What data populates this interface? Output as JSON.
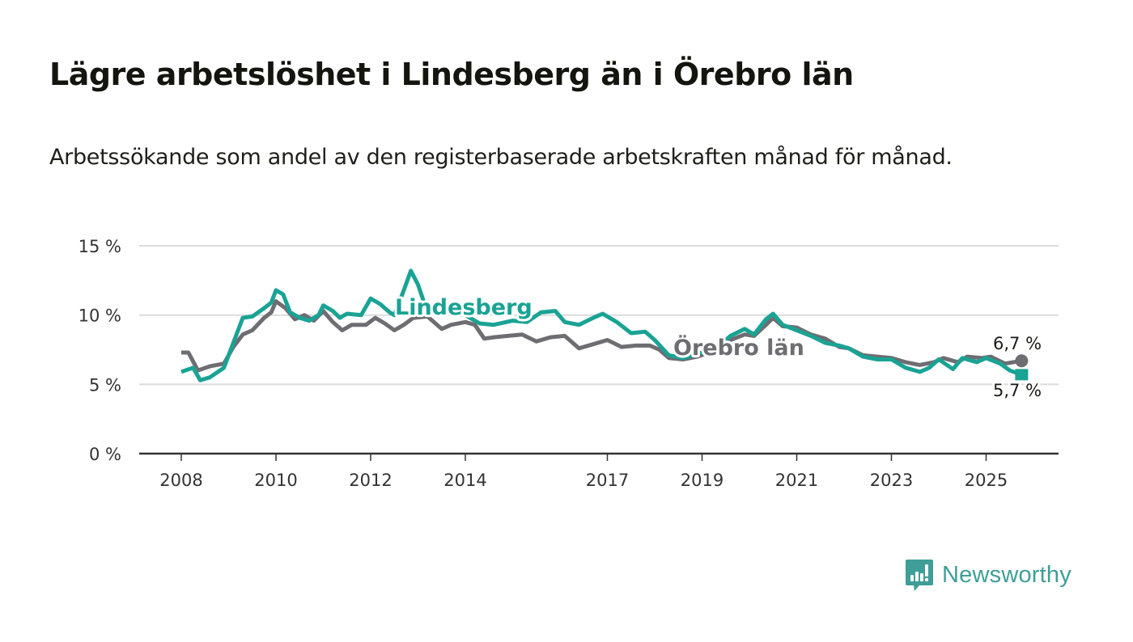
{
  "header": {
    "title": "Lägre arbetslöshet i Lindesberg än i Örebro län",
    "subtitle": "Arbetssökande som andel av den registerbaserade arbetskraften månad för månad."
  },
  "brand": {
    "name": "Newsworthy",
    "icon": "bar-chart-speech-bubble-icon",
    "color": "#3f9e97"
  },
  "chart_data": {
    "type": "line",
    "title": "Lägre arbetslöshet i Lindesberg än i Örebro län",
    "subtitle": "Arbetssökande som andel av den registerbaserade arbetskraften månad för månad.",
    "xlabel": "",
    "ylabel": "",
    "xlim": [
      2007.5,
      2026.5
    ],
    "ylim": [
      0,
      15
    ],
    "yticks": [
      0,
      5,
      10,
      15
    ],
    "ytick_labels": [
      "0 %",
      "5 %",
      "10 %",
      "15 %"
    ],
    "xticks": [
      2008,
      2010,
      2012,
      2014,
      2017,
      2019,
      2021,
      2023,
      2025
    ],
    "xtick_labels": [
      "2008",
      "2010",
      "2012",
      "2014",
      "2017",
      "2019",
      "2021",
      "2023",
      "2025"
    ],
    "grid": true,
    "legend": "inline labels",
    "series": [
      {
        "name": "Örebro län",
        "color": "#6e6d72",
        "label": "Örebro län",
        "end_label": "6,7 %",
        "x": [
          2008.0,
          2008.15,
          2008.35,
          2008.6,
          2008.9,
          2009.1,
          2009.3,
          2009.5,
          2009.75,
          2009.9,
          2010.0,
          2010.2,
          2010.4,
          2010.6,
          2010.8,
          2011.0,
          2011.2,
          2011.4,
          2011.6,
          2011.9,
          2012.1,
          2012.3,
          2012.5,
          2012.7,
          2012.9,
          2013.2,
          2013.5,
          2013.7,
          2014.0,
          2014.2,
          2014.4,
          2014.6,
          2014.9,
          2015.2,
          2015.5,
          2015.8,
          2016.1,
          2016.4,
          2016.7,
          2017.0,
          2017.3,
          2017.6,
          2017.9,
          2018.1,
          2018.3,
          2018.6,
          2018.9,
          2019.3,
          2019.6,
          2019.9,
          2020.1,
          2020.35,
          2020.5,
          2020.7,
          2021.0,
          2021.3,
          2021.6,
          2021.9,
          2022.1,
          2022.4,
          2022.7,
          2023.0,
          2023.3,
          2023.6,
          2023.9,
          2024.1,
          2024.4,
          2024.6,
          2024.9,
          2025.1,
          2025.4,
          2025.75
        ],
        "values": [
          7.3,
          7.3,
          6.0,
          6.3,
          6.5,
          7.7,
          8.6,
          8.9,
          9.8,
          10.2,
          11.0,
          10.5,
          9.7,
          10.0,
          9.6,
          10.3,
          9.5,
          8.9,
          9.3,
          9.3,
          9.8,
          9.4,
          8.9,
          9.3,
          9.8,
          9.9,
          9.0,
          9.3,
          9.5,
          9.3,
          8.3,
          8.4,
          8.5,
          8.6,
          8.1,
          8.4,
          8.5,
          7.6,
          7.9,
          8.2,
          7.7,
          7.8,
          7.8,
          7.5,
          6.9,
          6.8,
          7.0,
          7.5,
          8.2,
          8.6,
          8.5,
          9.3,
          9.8,
          9.2,
          9.1,
          8.6,
          8.3,
          7.7,
          7.6,
          7.1,
          7.0,
          6.9,
          6.6,
          6.4,
          6.6,
          6.9,
          6.6,
          7.0,
          6.9,
          7.0,
          6.5,
          6.7
        ]
      },
      {
        "name": "Lindesberg",
        "color": "#1aa394",
        "label": "Lindesberg",
        "end_label": "5,7 %",
        "x": [
          2008.0,
          2008.25,
          2008.4,
          2008.6,
          2008.9,
          2009.1,
          2009.3,
          2009.5,
          2009.75,
          2009.9,
          2010.0,
          2010.15,
          2010.3,
          2010.5,
          2010.7,
          2010.9,
          2011.0,
          2011.2,
          2011.35,
          2011.5,
          2011.8,
          2012.0,
          2012.2,
          2012.4,
          2012.5,
          2012.7,
          2012.85,
          2013.0,
          2013.2,
          2013.4,
          2013.7,
          2014.0,
          2014.3,
          2014.6,
          2015.0,
          2015.3,
          2015.6,
          2015.9,
          2016.1,
          2016.4,
          2016.7,
          2016.9,
          2017.2,
          2017.5,
          2017.8,
          2018.0,
          2018.3,
          2018.6,
          2018.9,
          2019.3,
          2019.6,
          2019.9,
          2020.1,
          2020.35,
          2020.5,
          2020.7,
          2021.0,
          2021.3,
          2021.6,
          2021.9,
          2022.1,
          2022.4,
          2022.7,
          2023.0,
          2023.3,
          2023.6,
          2023.8,
          2024.0,
          2024.3,
          2024.5,
          2024.8,
          2025.0,
          2025.3,
          2025.5,
          2025.75
        ],
        "values": [
          5.9,
          6.2,
          5.3,
          5.5,
          6.2,
          8.0,
          9.8,
          9.9,
          10.5,
          10.9,
          11.8,
          11.5,
          10.2,
          9.8,
          9.6,
          10.0,
          10.7,
          10.3,
          9.8,
          10.1,
          10.0,
          11.2,
          10.8,
          10.2,
          10.0,
          11.8,
          13.2,
          12.2,
          10.2,
          10.1,
          10.2,
          10.0,
          9.4,
          9.3,
          9.6,
          9.5,
          10.2,
          10.3,
          9.5,
          9.3,
          9.8,
          10.1,
          9.5,
          8.7,
          8.8,
          8.2,
          7.1,
          6.9,
          7.2,
          7.6,
          8.5,
          9.0,
          8.6,
          9.7,
          10.1,
          9.3,
          8.9,
          8.5,
          8.0,
          7.8,
          7.6,
          7.0,
          6.8,
          6.8,
          6.2,
          5.9,
          6.2,
          6.8,
          6.1,
          6.9,
          6.6,
          6.9,
          6.5,
          6.0,
          5.7
        ]
      }
    ]
  }
}
